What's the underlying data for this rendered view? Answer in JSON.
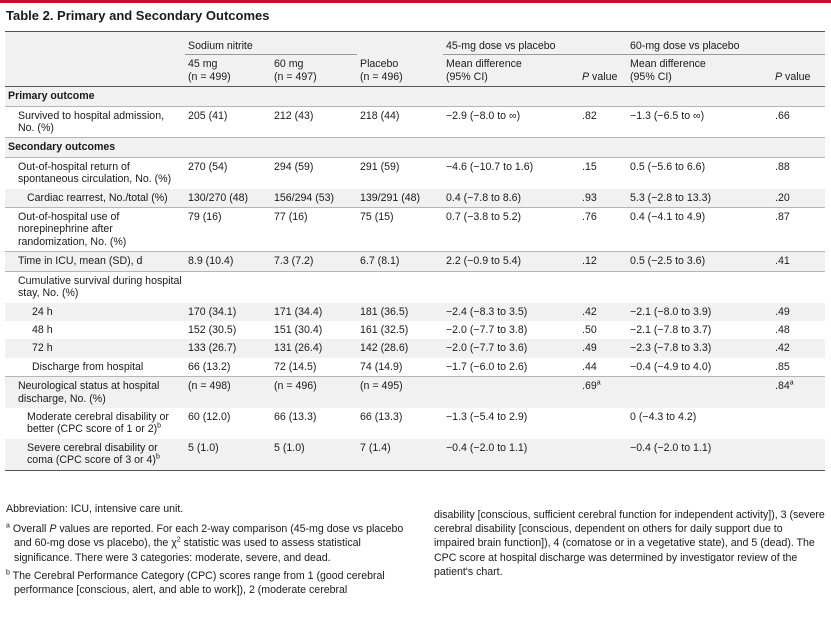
{
  "title": "Table 2. Primary and Secondary Outcomes",
  "header": {
    "group_sodium": "Sodium nitrite",
    "group_45": "45-mg dose vs placebo",
    "group_60": "60-mg dose vs placebo",
    "col_45mg": "45 mg",
    "col_45mg_n": "(n = 499)",
    "col_60mg": "60 mg",
    "col_60mg_n": "(n = 497)",
    "col_placebo": "Placebo",
    "col_placebo_n": "(n = 496)",
    "col_md": "Mean difference",
    "col_md_ci": "(95% CI)",
    "col_p": "P",
    "col_p_suffix": " value"
  },
  "rows": [
    {
      "label": "Primary outcome",
      "type": "section"
    },
    {
      "label": "Survived to hospital admission, No. (%)",
      "v45": "205 (41)",
      "v60": "212 (43)",
      "vpl": "218 (44)",
      "md45": "−2.9 (−8.0 to ∞)",
      "p45": ".82",
      "md60": "−1.3 (−6.5 to ∞)",
      "p60": ".66"
    },
    {
      "label": "Secondary outcomes",
      "type": "section"
    },
    {
      "label": "Out-of-hospital return of spontaneous circulation, No. (%)",
      "v45": "270 (54)",
      "v60": "294 (59)",
      "vpl": "291 (59)",
      "md45": "−4.6 (−10.7 to 1.6)",
      "p45": ".15",
      "md60": "0.5 (−5.6 to 6.6)",
      "p60": ".88"
    },
    {
      "label": "Cardiac rearrest, No./total (%)",
      "v45": "130/270 (48)",
      "v60": "156/294 (53)",
      "vpl": "139/291 (48)",
      "md45": "0.4 (−7.8 to 8.6)",
      "p45": ".93",
      "md60": "5.3 (−2.8 to 13.3)",
      "p60": ".20"
    },
    {
      "label": "Out-of-hospital use of norepinephrine after randomization, No. (%)",
      "v45": "79 (16)",
      "v60": "77 (16)",
      "vpl": "75 (15)",
      "md45": "0.7 (−3.8 to 5.2)",
      "p45": ".76",
      "md60": "0.4 (−4.1 to 4.9)",
      "p60": ".87"
    },
    {
      "label": "Time in ICU, mean (SD), d",
      "v45": "8.9 (10.4)",
      "v60": "7.3 (7.2)",
      "vpl": "6.7 (8.1)",
      "md45": "2.2 (−0.9 to 5.4)",
      "p45": ".12",
      "md60": "0.5 (−2.5 to 3.6)",
      "p60": ".41"
    },
    {
      "label": "Cumulative survival during hospital stay, No. (%)"
    },
    {
      "label": "24 h",
      "v45": "170 (34.1)",
      "v60": "171 (34.4)",
      "vpl": "181 (36.5)",
      "md45": "−2.4 (−8.3 to 3.5)",
      "p45": ".42",
      "md60": "−2.1 (−8.0 to 3.9)",
      "p60": ".49"
    },
    {
      "label": "48 h",
      "v45": "152 (30.5)",
      "v60": "151 (30.4)",
      "vpl": "161 (32.5)",
      "md45": "−2.0 (−7.7 to 3.8)",
      "p45": ".50",
      "md60": "−2.1 (−7.8 to 3.7)",
      "p60": ".48"
    },
    {
      "label": "72 h",
      "v45": "133 (26.7)",
      "v60": "131 (26.4)",
      "vpl": "142 (28.6)",
      "md45": "−2.0 (−7.7 to 3.6)",
      "p45": ".49",
      "md60": "−2.3 (−7.8 to 3.3)",
      "p60": ".42"
    },
    {
      "label": "Discharge from hospital",
      "v45": "66 (13.2)",
      "v60": "72 (14.5)",
      "vpl": "74 (14.9)",
      "md45": "−1.7 (−6.0 to 2.6)",
      "p45": ".44",
      "md60": "−0.4 (−4.9 to 4.0)",
      "p60": ".85"
    },
    {
      "label": "Neurological status at hospital discharge, No. (%)",
      "v45": "(n = 498)",
      "v60": "(n = 496)",
      "vpl": "(n = 495)",
      "p45": ".69",
      "p45_sup": "a",
      "p60": ".84",
      "p60_sup": "a"
    },
    {
      "label": "Moderate cerebral disability or better (CPC score of 1 or 2)",
      "label_sup": "b",
      "v45": "60 (12.0)",
      "v60": "66 (13.3)",
      "vpl": "66 (13.3)",
      "md45": "−1.3 (−5.4 to 2.9)",
      "md60": "0 (−4.3 to 4.2)"
    },
    {
      "label": "Severe cerebral disability or coma (CPC score of 3 or 4)",
      "label_sup": "b",
      "v45": "5 (1.0)",
      "v60": "5 (1.0)",
      "vpl": "7 (1.4)",
      "md45": "−0.4 (−2.0 to 1.1)",
      "md60": "−0.4 (−2.0 to 1.1)"
    }
  ],
  "footnotes": {
    "abbrev": "Abbreviation: ICU, intensive care unit.",
    "a_mark": "a",
    "a_text_1": " Overall ",
    "a_text_p": "P",
    "a_text_2": " values are reported. For each 2-way comparison (45-mg dose vs placebo and 60-mg dose vs placebo), the χ",
    "a_text_sup": "2",
    "a_text_3": " statistic was used to assess statistical significance. There were 3 categories: moderate, severe, and dead.",
    "b_mark": "b",
    "b_text": " The Cerebral Performance Category (CPC) scores range from 1 (good cerebral performance [conscious, alert, and able to work]), 2 (moderate cerebral",
    "b_cont": "disability [conscious, sufficient cerebral function for independent activity]), 3 (severe cerebral disability [conscious, dependent on others for daily support due to impaired brain function]), 4 (comatose or in a vegetative state), and 5 (dead). The CPC score at hospital discharge was determined by investigator review of the patient's chart."
  },
  "colors": {
    "accent": "#c8102e",
    "header_bg": "#f1f1f1"
  }
}
